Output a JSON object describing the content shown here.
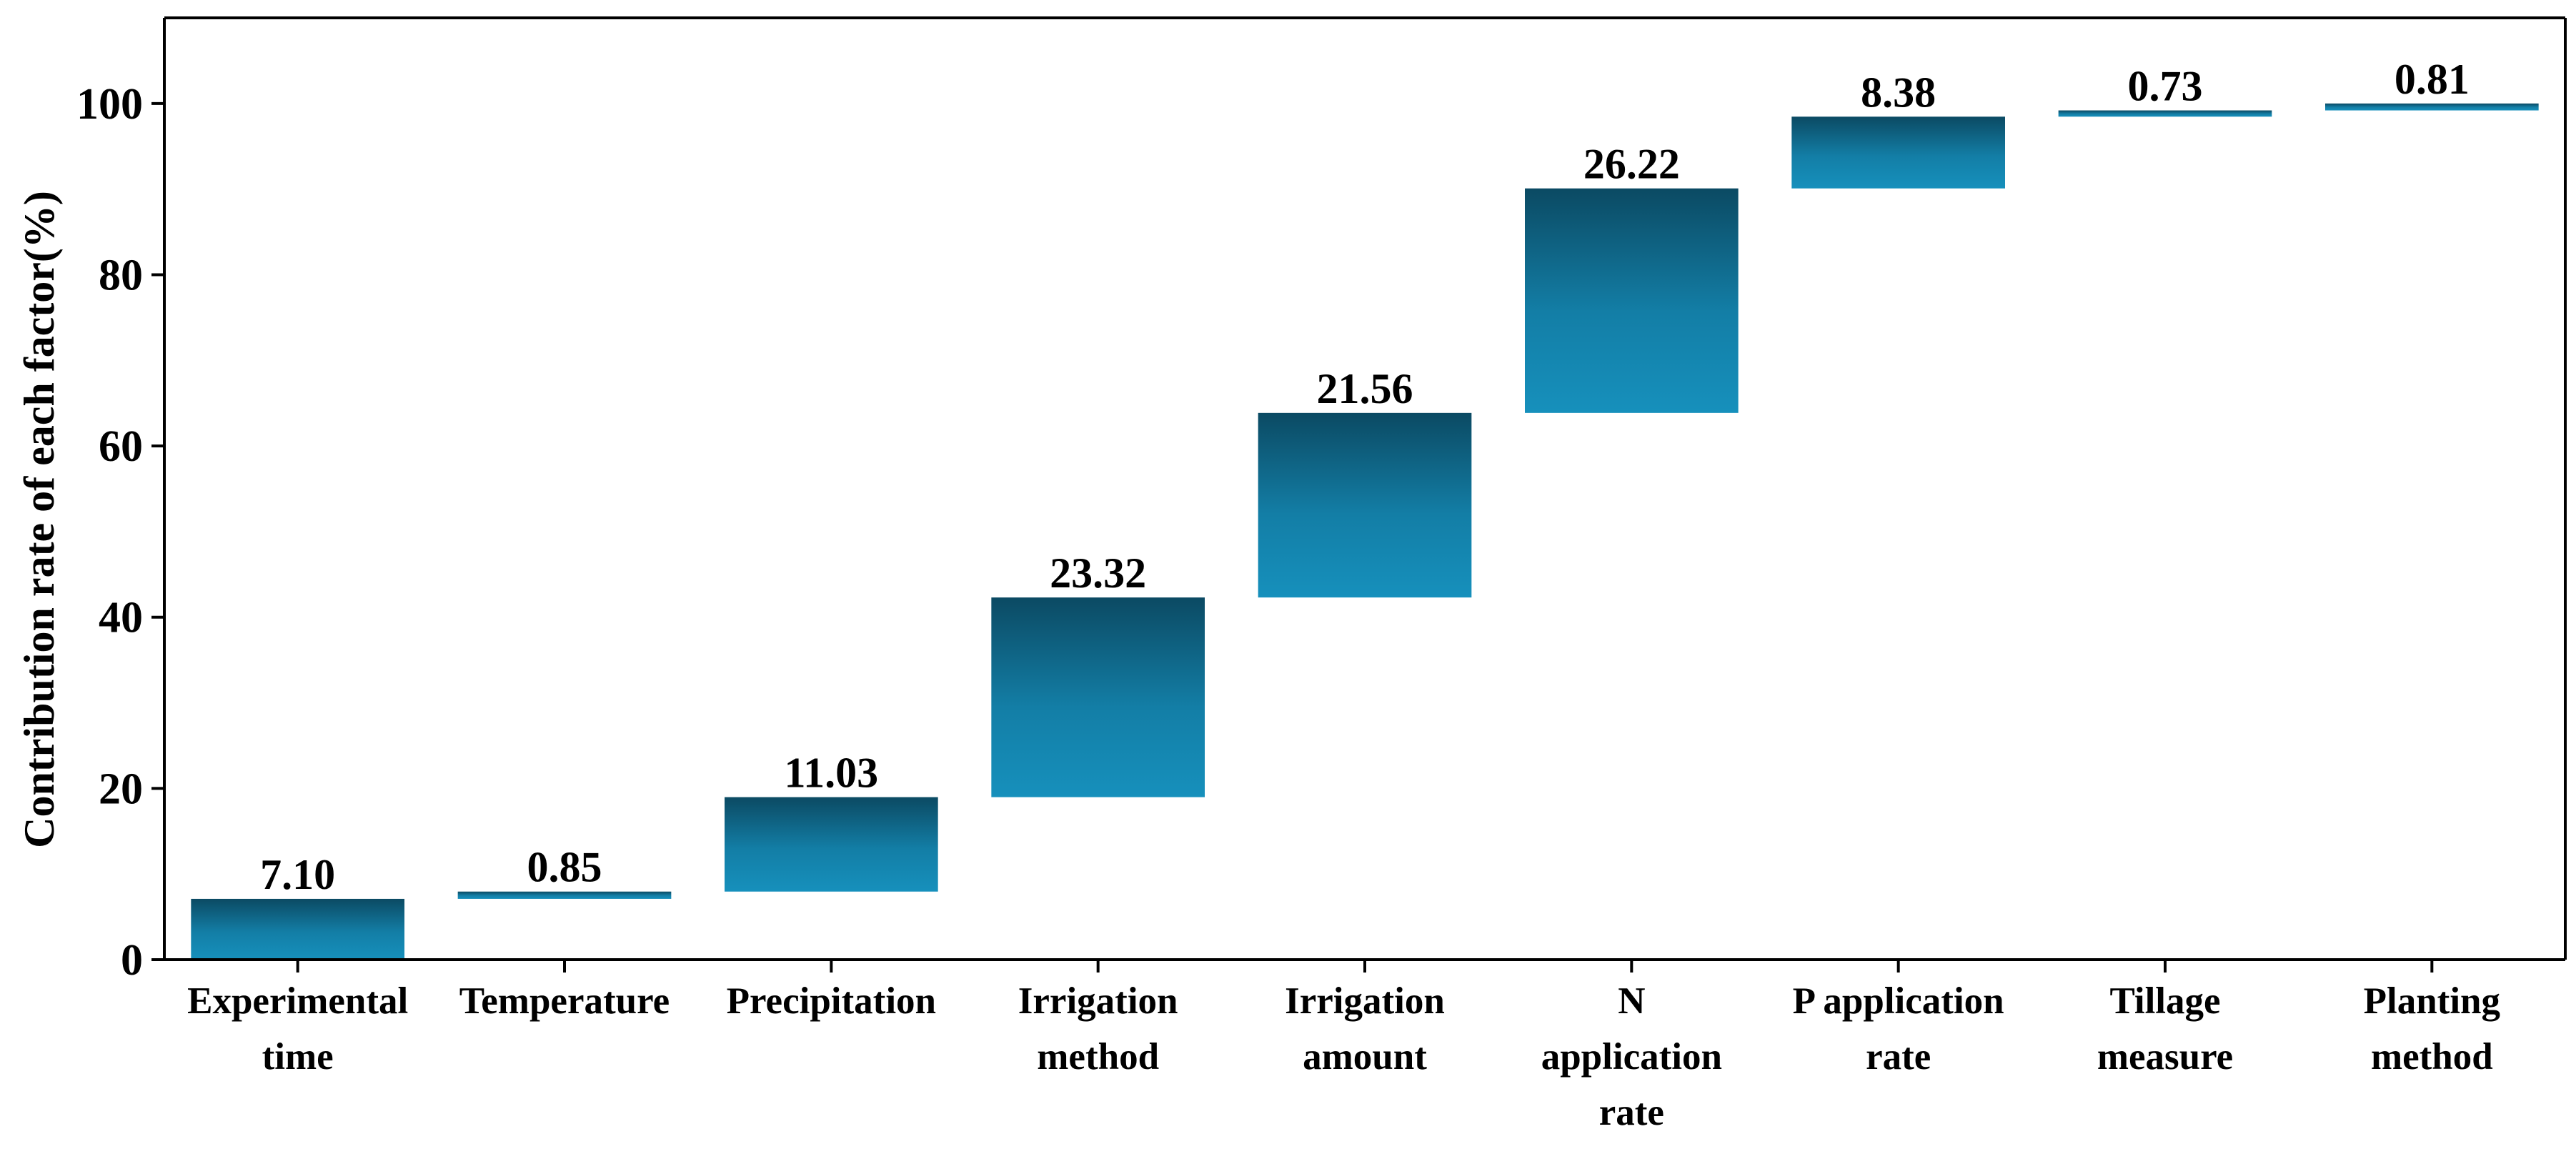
{
  "chart_data": {
    "type": "bar",
    "subtype": "waterfall",
    "title": "",
    "xlabel": "",
    "ylabel": "Contribution rate of each factor(%)",
    "ylim": [
      0,
      110
    ],
    "yticks": [
      0,
      20,
      40,
      60,
      80,
      100
    ],
    "grid": false,
    "legend": "none",
    "categories": [
      [
        "Experimental",
        "time"
      ],
      [
        "Temperature"
      ],
      [
        "Precipitation"
      ],
      [
        "Irrigation",
        "method"
      ],
      [
        "Irrigation",
        "amount"
      ],
      [
        "N",
        "application",
        "rate"
      ],
      [
        "P application",
        "rate"
      ],
      [
        "Tillage",
        "measure"
      ],
      [
        "Planting",
        "method"
      ]
    ],
    "values": [
      7.1,
      0.85,
      11.03,
      23.32,
      21.56,
      26.22,
      8.38,
      0.73,
      0.81
    ],
    "value_labels": [
      "7.10",
      "0.85",
      "11.03",
      "23.32",
      "21.56",
      "26.22",
      "8.38",
      "0.73",
      "0.81"
    ],
    "colors": {
      "bar_top": "#0b4a63",
      "bar_bottom": "#1690bc",
      "axis": "#000000"
    }
  }
}
